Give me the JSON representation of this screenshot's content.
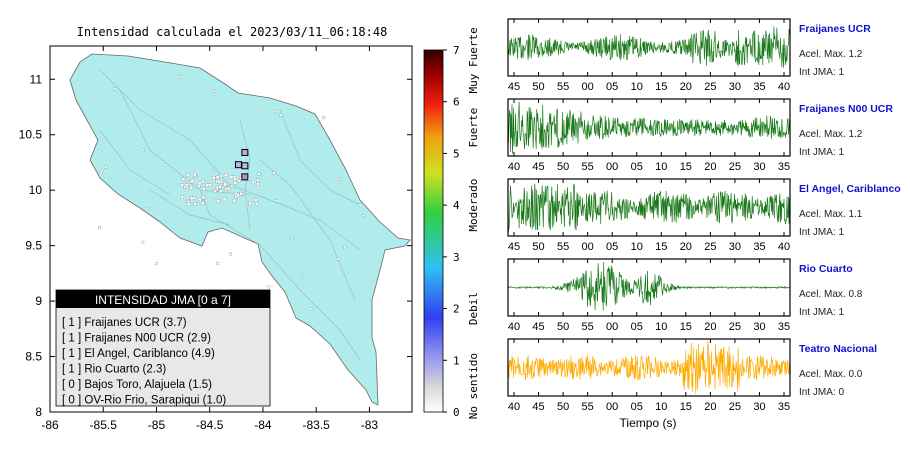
{
  "map": {
    "title": "Intensidad calculada el 2023/03/11_06:18:48",
    "xticks": [
      "-86",
      "-85.5",
      "-85",
      "-84.5",
      "-84",
      "-83.5",
      "-83"
    ],
    "yticks": [
      "11",
      "10.5",
      "10",
      "9.5",
      "9",
      "8.5",
      "8"
    ],
    "xlim": [
      -86,
      -82.6
    ],
    "ylim": [
      8,
      11.3
    ],
    "land_color": "#b0ecec",
    "stations": [
      {
        "lon": -84.23,
        "lat": 10.23,
        "color": "#b8b8f0"
      },
      {
        "lon": -84.17,
        "lat": 10.34,
        "color": "#c4a0e8"
      },
      {
        "lon": -84.17,
        "lat": 10.12,
        "color": "#b090e0"
      },
      {
        "lon": -84.17,
        "lat": 10.22,
        "color": "#b8b8f0"
      }
    ],
    "legend": {
      "header": "INTENSIDAD JMA [0 a 7]",
      "items": [
        "[ 1 ]  Fraijanes UCR (3.7)",
        "[ 1 ]  Fraijanes N00 UCR (2.9)",
        "[ 1 ]  El Angel, Cariblanco (4.9)",
        "[ 1 ]  Rio Cuarto (2.3)",
        "[ 0 ]  Bajos Toro, Alajuela (1.5)",
        "[ 0 ]  OV-Rio Frio, Sarapiqui (1.0)"
      ]
    }
  },
  "colorbar": {
    "ticks": [
      "0",
      "1",
      "2",
      "3",
      "4",
      "5",
      "6",
      "7"
    ],
    "range": [
      0,
      7
    ],
    "labels": [
      {
        "text": "No sentido",
        "value": 0.5
      },
      {
        "text": "Debil",
        "value": 2.0
      },
      {
        "text": "Moderado",
        "value": 4.0
      },
      {
        "text": "Fuerte",
        "value": 5.5
      },
      {
        "text": "Muy Fuerte",
        "value": 6.8
      }
    ]
  },
  "waveforms": {
    "xlabel": "Tiempo (s)",
    "panels": [
      {
        "name": "Fraijanes UCR",
        "accel": "Acel. Max. 1.2",
        "jma": "Int JMA: 1",
        "color": "#1a7a1a",
        "ticks": [
          "45",
          "50",
          "55",
          "00",
          "05",
          "10",
          "15",
          "20",
          "25",
          "30",
          "35",
          "40"
        ],
        "env": "p1"
      },
      {
        "name": "Fraijanes N00 UCR",
        "accel": "Acel. Max. 1.2",
        "jma": "Int JMA: 1",
        "color": "#1a7a1a",
        "ticks": [
          "40",
          "45",
          "50",
          "55",
          "00",
          "05",
          "10",
          "15",
          "20",
          "25",
          "30",
          "35"
        ],
        "env": "p2"
      },
      {
        "name": "El Angel, Cariblanco",
        "accel": "Acel. Max. 1.1",
        "jma": "Int JMA: 1",
        "color": "#1a7a1a",
        "ticks": [
          "45",
          "50",
          "55",
          "00",
          "05",
          "10",
          "15",
          "20",
          "25",
          "30",
          "35",
          "40"
        ],
        "env": "p3"
      },
      {
        "name": "Rio Cuarto",
        "accel": "Acel. Max. 0.8",
        "jma": "Int JMA: 1",
        "color": "#1a7a1a",
        "ticks": [
          "40",
          "45",
          "50",
          "55",
          "00",
          "05",
          "10",
          "15",
          "20",
          "25",
          "30",
          "35"
        ],
        "env": "p4"
      },
      {
        "name": "Teatro Nacional",
        "accel": "Acel. Max. 0.0",
        "jma": "Int JMA: 0",
        "color": "#ffaa00",
        "ticks": [
          "40",
          "45",
          "50",
          "55",
          "00",
          "05",
          "10",
          "15",
          "20",
          "25",
          "30",
          "35"
        ],
        "env": "p5"
      }
    ]
  }
}
